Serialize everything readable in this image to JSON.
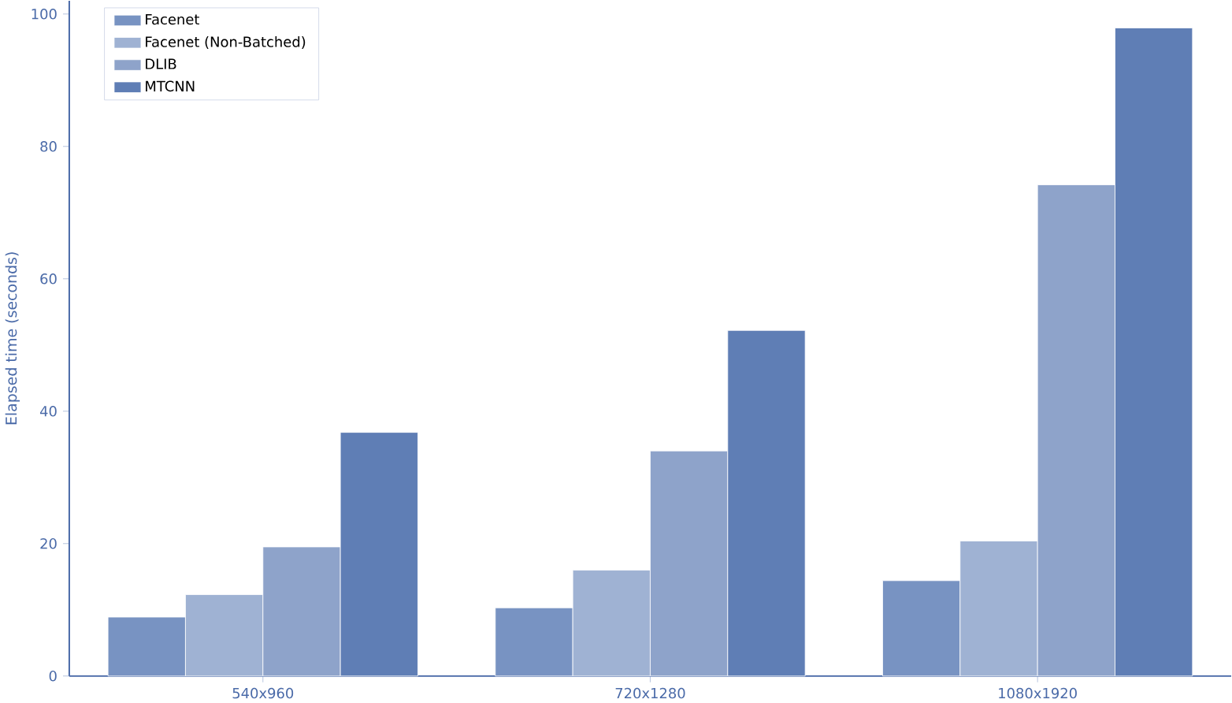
{
  "chart_data": {
    "type": "bar",
    "ylabel": "Elapsed time (seconds)",
    "categories": [
      "540x960",
      "720x1280",
      "1080x1920"
    ],
    "series": [
      {
        "name": "Facenet",
        "color": "#7893c2",
        "values": [
          8.9,
          10.3,
          14.4
        ]
      },
      {
        "name": "Facenet (Non-Batched)",
        "color": "#9fb2d3",
        "values": [
          12.3,
          16.0,
          20.4
        ]
      },
      {
        "name": "DLIB",
        "color": "#8ea3ca",
        "values": [
          19.5,
          34.0,
          74.2
        ]
      },
      {
        "name": "MTCNN",
        "color": "#5f7eb5",
        "values": [
          36.8,
          52.2,
          97.9
        ]
      }
    ],
    "ylim": [
      0,
      102
    ],
    "yticks": [
      0,
      20,
      40,
      60,
      80,
      100
    ],
    "grid": false,
    "legend": "top left"
  }
}
